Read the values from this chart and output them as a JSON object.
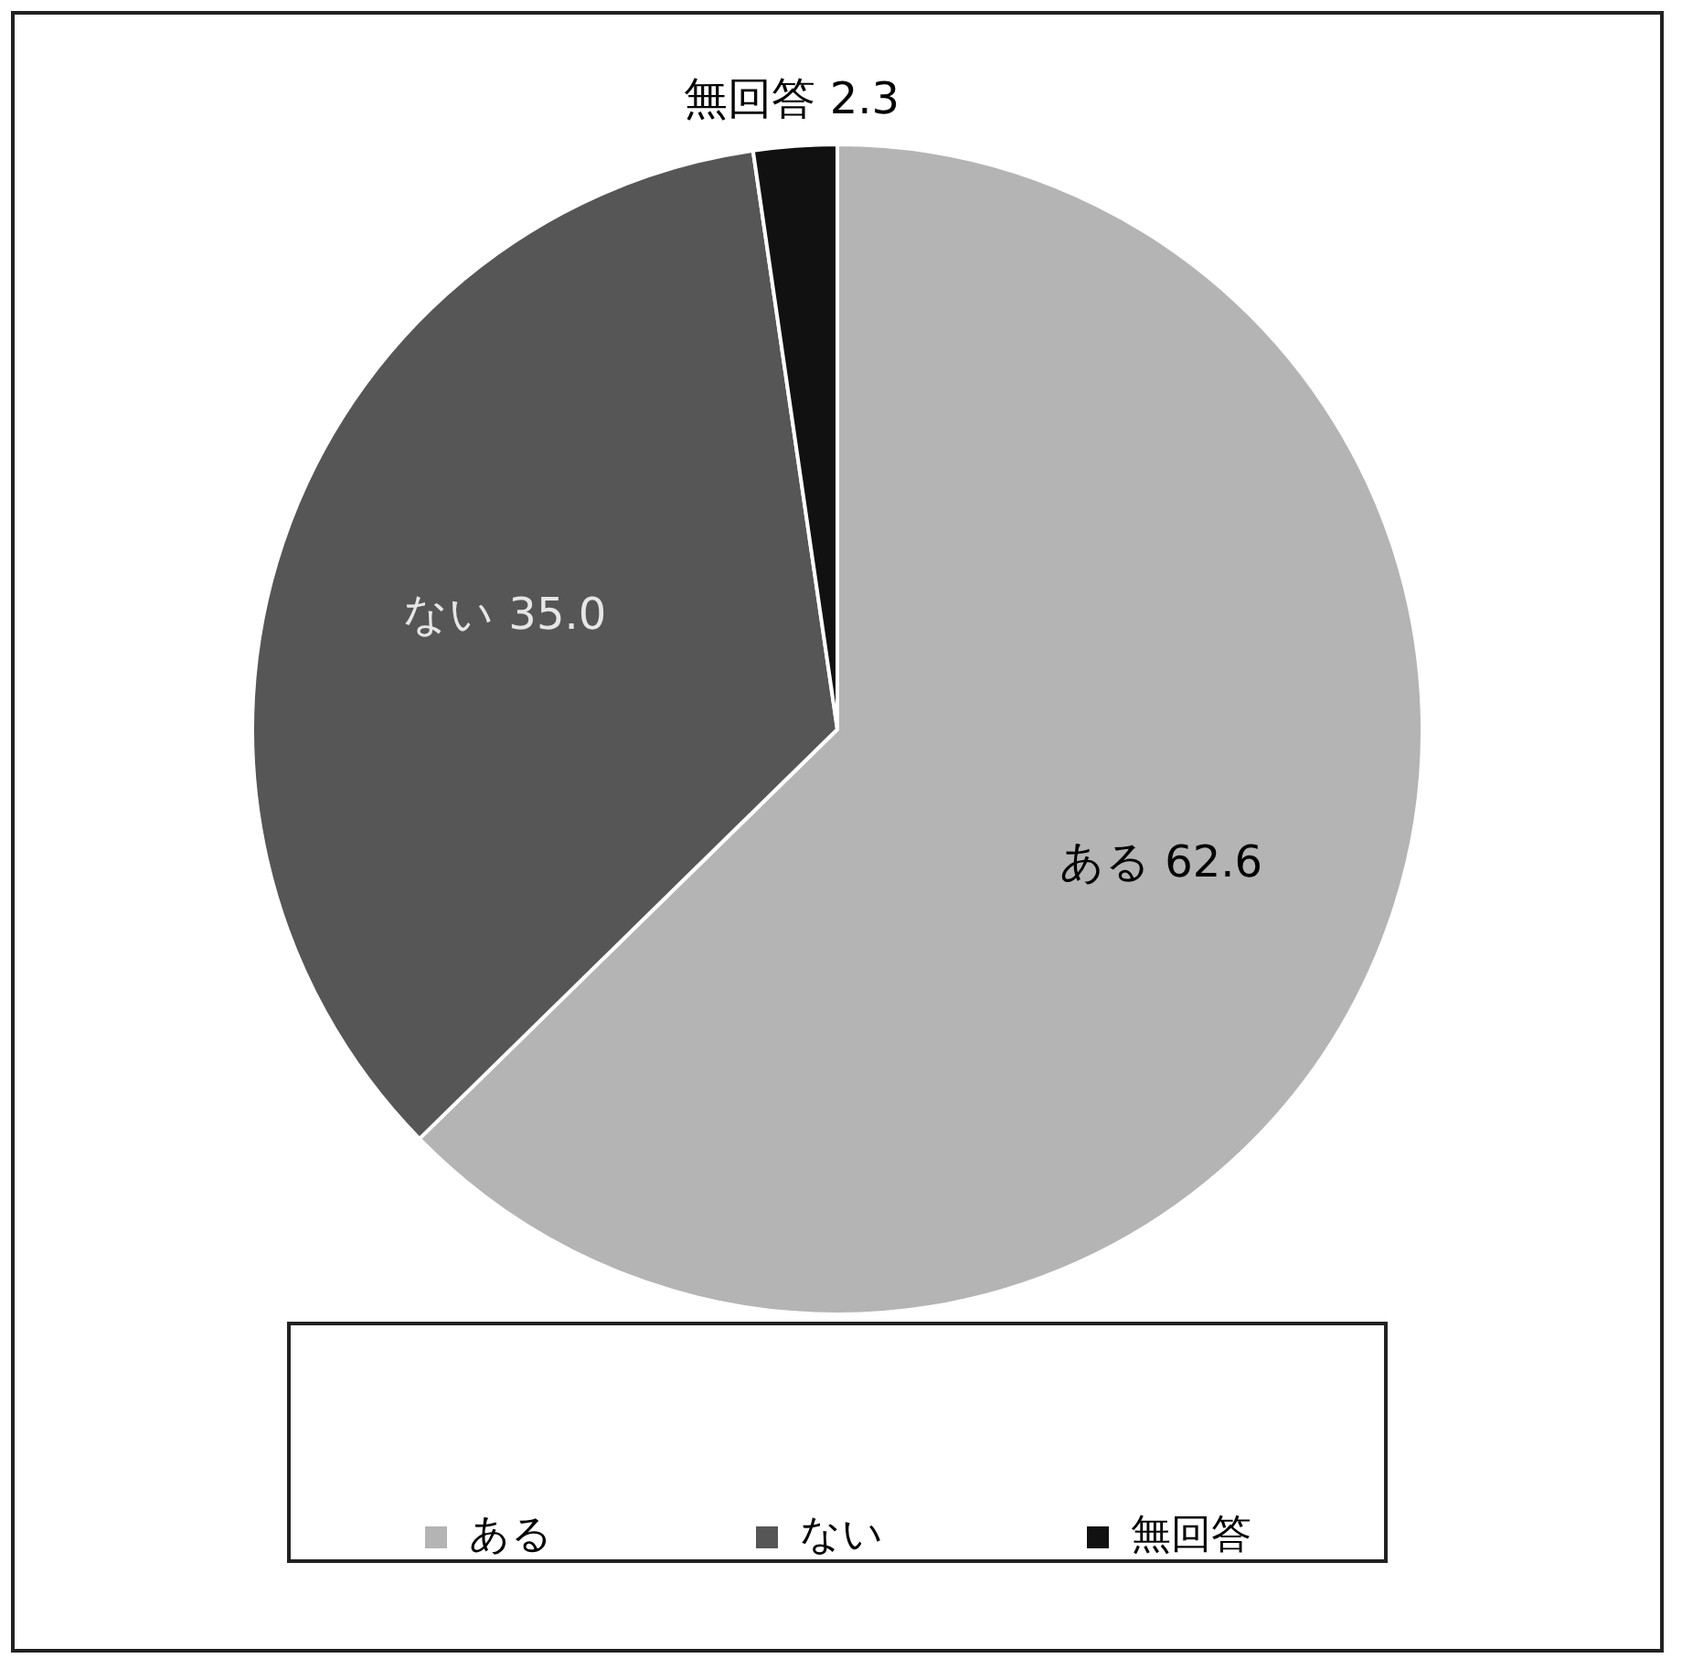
{
  "chart_data": {
    "type": "pie",
    "categories": [
      "ある",
      "ない",
      "無回答"
    ],
    "values": [
      62.6,
      35.0,
      2.3
    ],
    "value_labels": [
      "62.6",
      "35.0",
      "2.3"
    ],
    "colors": [
      "#b4b4b4",
      "#565656",
      "#111111"
    ],
    "legend": "bottom"
  }
}
